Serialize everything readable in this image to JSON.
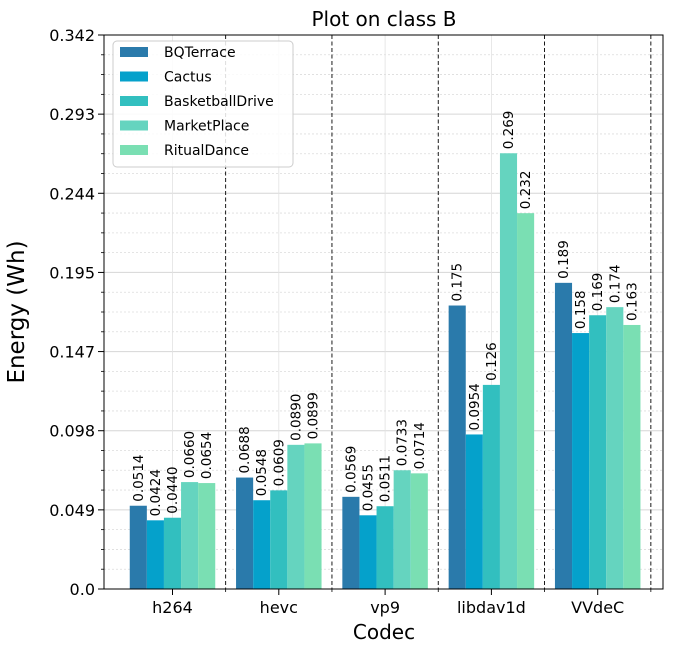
{
  "chart_data": {
    "type": "bar",
    "title": "Plot on class B",
    "xlabel": "Codec",
    "ylabel": "Energy (Wh)",
    "ylim": [
      0,
      0.342
    ],
    "yticks": [
      "0.0",
      "0.049",
      "0.098",
      "0.147",
      "0.195",
      "0.244",
      "0.293",
      "0.342"
    ],
    "grid": true,
    "legend_position": "top-left",
    "categories": [
      "h264",
      "hevc",
      "vp9",
      "libdav1d",
      "VVdeC"
    ],
    "series": [
      {
        "name": "BQTerrace",
        "color": "#2a7aab",
        "values": [
          0.0514,
          0.0688,
          0.0569,
          0.175,
          0.189
        ],
        "labels": [
          "0.0514",
          "0.0688",
          "0.0569",
          "0.175",
          "0.189"
        ]
      },
      {
        "name": "Cactus",
        "color": "#05a1cb",
        "values": [
          0.0424,
          0.0548,
          0.0455,
          0.0954,
          0.158
        ],
        "labels": [
          "0.0424",
          "0.0548",
          "0.0455",
          "0.0954",
          "0.158"
        ]
      },
      {
        "name": "BasketballDrive",
        "color": "#32bfbf",
        "values": [
          0.044,
          0.0609,
          0.0511,
          0.126,
          0.169
        ],
        "labels": [
          "0.0440",
          "0.0609",
          "0.0511",
          "0.126",
          "0.169"
        ]
      },
      {
        "name": "MarketPlace",
        "color": "#65d4bf",
        "values": [
          0.066,
          0.089,
          0.0733,
          0.269,
          0.174
        ],
        "labels": [
          "0.0660",
          "0.0890",
          "0.0733",
          "0.269",
          "0.174"
        ]
      },
      {
        "name": "RitualDance",
        "color": "#7adfb3",
        "values": [
          0.0654,
          0.0899,
          0.0714,
          0.232,
          0.163
        ],
        "labels": [
          "0.0654",
          "0.0899",
          "0.0714",
          "0.232",
          "0.163"
        ]
      }
    ]
  }
}
